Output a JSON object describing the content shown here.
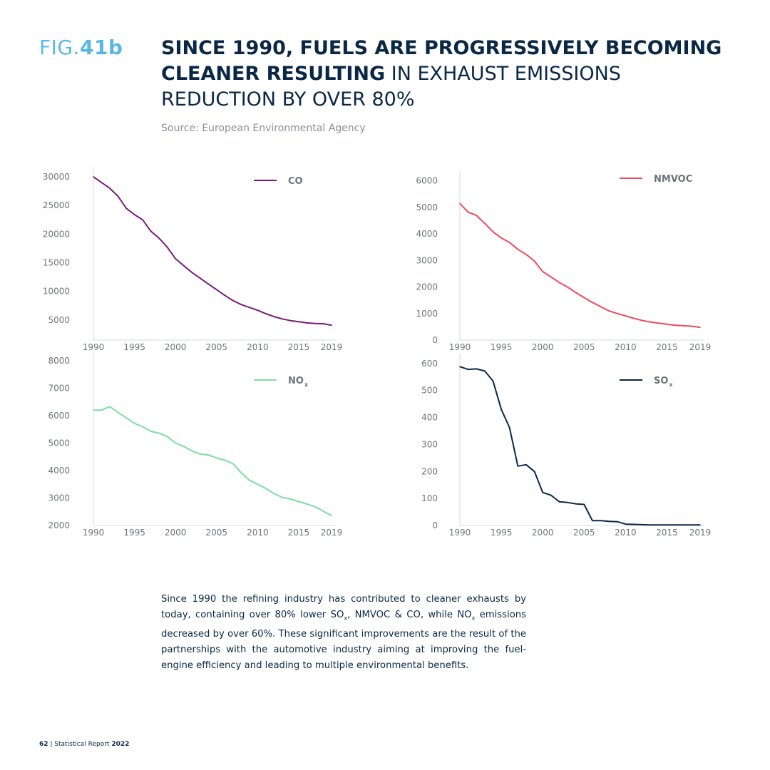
{
  "figure": {
    "label_prefix": "FIG.",
    "label_number": "41b",
    "title_bold": "SINCE 1990, FUELS ARE PROGRESSIVELY BECOMING CLEANER RESULTING",
    "title_regular": " IN EXHAUST EMISSIONS REDUCTION BY OVER 80%",
    "source": "Source: European Environmental Agency"
  },
  "body": {
    "p1": "Since 1990 the refining industry has contributed to cleaner exhausts by today, containing over 80% lower SO",
    "sub1": "x",
    "p2": ", NMVOC & CO, while NO",
    "sub2": "x",
    "p3": " emissions decreased by over 60%. These significant improvements are the result of the partnerships with the automotive industry aiming at improving the fuel-engine efficiency and leading to multiple environmental benefits."
  },
  "footer": {
    "page": "62",
    "separator": " | Statistical Report ",
    "year": "2022"
  },
  "chart_data": [
    {
      "type": "line",
      "legend": "CO",
      "legend_sub": "",
      "color": "#7b1a7a",
      "x_ticks": [
        1990,
        1995,
        2000,
        2005,
        2010,
        2015,
        2019
      ],
      "y_ticks": [
        5000,
        10000,
        15000,
        20000,
        25000,
        30000
      ],
      "ylim": [
        1500,
        30500
      ],
      "x": [
        1990,
        1991,
        1992,
        1993,
        1994,
        1995,
        1996,
        1997,
        1998,
        1999,
        2000,
        2001,
        2002,
        2003,
        2004,
        2005,
        2006,
        2007,
        2008,
        2009,
        2010,
        2011,
        2012,
        2013,
        2014,
        2015,
        2016,
        2017,
        2018,
        2019
      ],
      "values": [
        30000,
        29000,
        28000,
        26600,
        24500,
        23400,
        22500,
        20500,
        19300,
        17700,
        15700,
        14500,
        13300,
        12300,
        11300,
        10300,
        9300,
        8400,
        7700,
        7200,
        6700,
        6100,
        5600,
        5200,
        4900,
        4700,
        4500,
        4400,
        4350,
        4100
      ]
    },
    {
      "type": "line",
      "legend": "NMVOC",
      "legend_sub": "",
      "color": "#ee4a5e",
      "x_ticks": [
        1990,
        1995,
        2000,
        2005,
        2010,
        2015,
        2019
      ],
      "y_ticks": [
        0,
        1000,
        2000,
        3000,
        4000,
        5000,
        6000
      ],
      "ylim": [
        0,
        6100
      ],
      "x": [
        1990,
        1991,
        1992,
        1993,
        1994,
        1995,
        1996,
        1997,
        1998,
        1999,
        2000,
        2001,
        2002,
        2003,
        2004,
        2005,
        2006,
        2007,
        2008,
        2009,
        2010,
        2011,
        2012,
        2013,
        2014,
        2015,
        2016,
        2017,
        2018,
        2019
      ],
      "values": [
        5150,
        4820,
        4700,
        4400,
        4080,
        3850,
        3680,
        3420,
        3230,
        2980,
        2580,
        2380,
        2170,
        2000,
        1790,
        1600,
        1420,
        1260,
        1100,
        1000,
        910,
        820,
        740,
        680,
        640,
        600,
        560,
        540,
        520,
        480
      ]
    },
    {
      "type": "line",
      "legend": "NO",
      "legend_sub": "x",
      "color": "#7fdca2",
      "x_ticks": [
        1990,
        1995,
        2000,
        2005,
        2010,
        2015,
        2019
      ],
      "y_ticks": [
        2000,
        3000,
        4000,
        5000,
        6000,
        7000,
        8000
      ],
      "ylim": [
        2000,
        8000
      ],
      "x": [
        1990,
        1991,
        1992,
        1993,
        1994,
        1995,
        1996,
        1997,
        1998,
        1999,
        2000,
        2001,
        2002,
        2003,
        2004,
        2005,
        2006,
        2007,
        2008,
        2009,
        2010,
        2011,
        2012,
        2013,
        2014,
        2015,
        2016,
        2017,
        2018,
        2019
      ],
      "values": [
        6200,
        6200,
        6330,
        6120,
        5920,
        5720,
        5600,
        5430,
        5360,
        5240,
        5000,
        4880,
        4720,
        4600,
        4570,
        4460,
        4380,
        4250,
        3920,
        3650,
        3500,
        3350,
        3160,
        3020,
        2960,
        2870,
        2780,
        2680,
        2520,
        2350
      ]
    },
    {
      "type": "line",
      "legend": "SO",
      "legend_sub": "x",
      "color": "#0a2846",
      "x_ticks": [
        1990,
        1995,
        2000,
        2005,
        2010,
        2015,
        2019
      ],
      "y_ticks": [
        0,
        100,
        200,
        300,
        400,
        500,
        600
      ],
      "ylim": [
        0,
        610
      ],
      "x": [
        1990,
        1991,
        1992,
        1993,
        1994,
        1995,
        1996,
        1997,
        1998,
        1999,
        2000,
        2001,
        2002,
        2003,
        2004,
        2005,
        2006,
        2007,
        2008,
        2009,
        2010,
        2011,
        2012,
        2013,
        2014,
        2015,
        2016,
        2017,
        2018,
        2019
      ],
      "values": [
        588,
        578,
        580,
        572,
        535,
        430,
        362,
        220,
        225,
        200,
        122,
        112,
        88,
        85,
        80,
        78,
        18,
        18,
        15,
        14,
        5,
        4,
        3,
        2,
        2,
        2,
        2,
        2,
        2,
        2
      ]
    }
  ]
}
